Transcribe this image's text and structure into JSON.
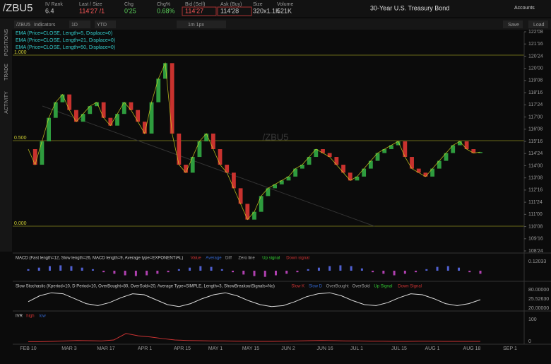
{
  "header": {
    "symbol": "/ZBU5",
    "fields": [
      {
        "label": "IV Rank",
        "value": "6.4"
      },
      {
        "label": "Last / Size",
        "value": "114'27 /1"
      },
      {
        "label": "Chg",
        "value": "0'25"
      },
      {
        "label": "Chg%",
        "value": "0.68%"
      },
      {
        "label": "Bid (Sell)",
        "value": "114'27"
      },
      {
        "label": "Ask (Buy)",
        "value": "114'28"
      },
      {
        "label": "Size",
        "value": "320x1.1K"
      },
      {
        "label": "Volume",
        "value": "521K"
      }
    ],
    "description": "30-Year U.S. Treasury Bond",
    "accounts": "Accounts"
  },
  "toolbar": {
    "symbol": "/ZBU5",
    "indicators": "Indicators",
    "interval": "1D",
    "range": "YTD",
    "drawing": "1m 1px",
    "save": "Save",
    "load": "Load"
  },
  "sidebar": [
    "POSITIONS",
    "TRADE",
    "ACTIVITY"
  ],
  "price_chart": {
    "watermark": "/ZBU5",
    "studies": [
      "EMA (Price=CLOSE, Length=5, Displace=0)",
      "EMA (Price=CLOSE, Length=21, Displace=0)",
      "EMA (Price=CLOSE, Length=50, Displace=0)"
    ],
    "fib_labels": [
      "1.000",
      "0.500",
      "0.000"
    ],
    "closes": [
      115.02,
      114.06,
      115.5,
      116.95,
      117.91,
      118.39,
      117.43,
      116.71,
      117.19,
      117.67,
      117.91,
      116.95,
      116.47,
      117.19,
      117.91,
      117.43,
      116.71,
      115.98,
      117.91,
      119.36,
      120.32,
      115.98,
      114.06,
      113.57,
      114.54,
      115.5,
      115.98,
      115.02,
      114.06,
      113.57,
      112.61,
      111.65,
      110.68,
      111.16,
      112.13,
      112.61,
      112.85,
      113.09,
      113.33,
      113.82,
      114.06,
      114.54,
      115.02,
      114.78,
      114.54,
      114.06,
      113.57,
      113.09,
      113.33,
      113.82,
      114.3,
      114.78,
      115.02,
      115.26,
      115.5,
      114.54,
      113.82,
      113.57,
      113.33,
      113.82,
      114.3,
      114.78,
      115.26,
      115.5,
      115.02,
      114.78,
      114.84
    ],
    "ylim": [
      108.75,
      122.25
    ],
    "yticks": [
      {
        "value": 122.25,
        "label": "122'08"
      },
      {
        "value": 121.5,
        "label": "121'16"
      },
      {
        "value": 120.75,
        "label": "120'24"
      },
      {
        "value": 120,
        "label": "120'00"
      },
      {
        "value": 119.25,
        "label": "119'08"
      },
      {
        "value": 118.5,
        "label": "118'16"
      },
      {
        "value": 117.75,
        "label": "117'24"
      },
      {
        "value": 117,
        "label": "117'00"
      },
      {
        "value": 116.25,
        "label": "116'08"
      },
      {
        "value": 115.5,
        "label": "115'16"
      },
      {
        "value": 114.75,
        "label": "114'24"
      },
      {
        "value": 114,
        "label": "114'00"
      },
      {
        "value": 113.25,
        "label": "113'08"
      },
      {
        "value": 112.5,
        "label": "112'16"
      },
      {
        "value": 111.75,
        "label": "111'24"
      },
      {
        "value": 111,
        "label": "111'00"
      },
      {
        "value": 110.25,
        "label": "110'08"
      },
      {
        "value": 109.5,
        "label": "109'16"
      },
      {
        "value": 108.75,
        "label": "108'24"
      }
    ]
  },
  "macd": {
    "title": "MACD (Fast length=12, Slow length=26, MACD length=9, Average type=EXPONENTIAL)",
    "legend": [
      "Value",
      "Average",
      "Diff",
      "Zero line",
      "Up signal",
      "Down signal"
    ],
    "values": [
      0.1,
      0.2,
      0.3,
      0.35,
      0.3,
      0.2,
      0.1,
      -0.1,
      -0.2,
      -0.3,
      -0.35,
      -0.3,
      -0.2,
      -0.1,
      0.1,
      0.2,
      0.3,
      0.25,
      0.1,
      -0.1,
      -0.25,
      -0.35,
      -0.4,
      -0.3,
      -0.2,
      -0.1,
      0.1,
      0.2,
      0.3,
      0.35,
      0.3,
      0.15,
      -0.1,
      -0.2,
      -0.3,
      -0.2,
      -0.1,
      0.1,
      0.25,
      0.3,
      0.2,
      -0.1,
      -0.2
    ],
    "ylim": [
      -0.6,
      0.6
    ],
    "axis_label": "0.12033"
  },
  "stochastic": {
    "title": "Slow Stochastic (Kperiod=10, D Period=10, OverBought=80, OverSold=20, Average Type=SIMPLE, Length=3, ShowBreakoutSignals=No)",
    "legend": [
      "Slow K",
      "Slow D",
      "OverBought",
      "OverSold",
      "Up Signal",
      "Down Signal"
    ],
    "values": [
      40,
      70,
      85,
      80,
      55,
      30,
      20,
      35,
      60,
      80,
      75,
      50,
      25,
      15,
      30,
      55,
      75,
      85,
      70,
      45,
      25,
      15,
      20,
      40,
      65,
      80,
      85,
      70,
      45,
      25,
      20,
      35,
      60,
      80,
      75,
      55,
      30,
      20,
      30,
      50
    ],
    "ylim": [
      0,
      100
    ],
    "axis_labels": [
      "80.00000",
      "25.52630",
      "20.00000"
    ]
  },
  "ivr": {
    "title": "IVR",
    "legend": [
      "high",
      "low"
    ],
    "values": [
      5,
      5,
      6,
      8,
      10,
      9,
      8,
      12,
      40,
      30,
      25,
      18,
      12,
      10,
      9,
      8,
      8,
      7,
      7,
      6,
      6,
      7,
      8,
      9,
      10,
      9,
      8,
      8,
      7,
      7,
      6,
      6,
      7,
      7,
      6,
      6,
      6,
      6
    ],
    "ylim": [
      0,
      100
    ],
    "axis_labels": [
      "100",
      "0"
    ]
  },
  "dates": [
    "FEB 10",
    "MAR 3",
    "MAR 17",
    "APR 1",
    "APR 15",
    "MAY 1",
    "MAY 15",
    "JUN 2",
    "JUN 16",
    "JUL 1",
    "JUL 15",
    "AUG 1",
    "AUG 18",
    "SEP 1"
  ]
}
